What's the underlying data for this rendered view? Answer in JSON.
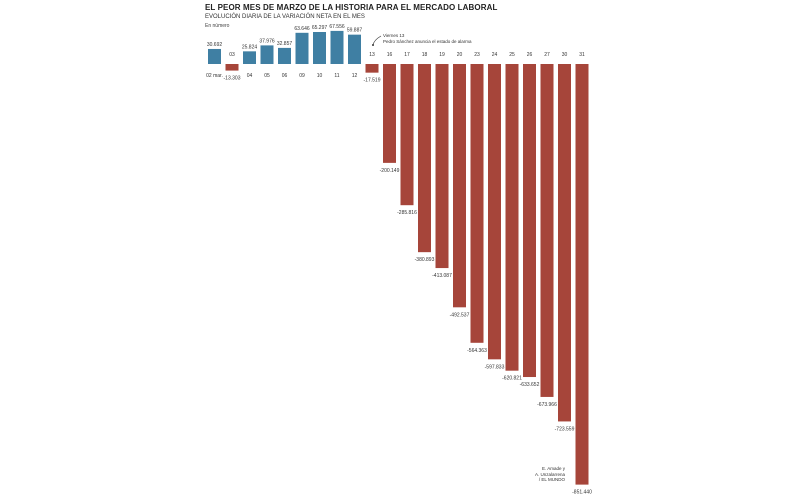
{
  "chart_data": {
    "type": "bar",
    "title": "EL PEOR MES DE MARZO DE LA HISTORIA PARA EL MERCADO LABORAL",
    "subtitle": "EVOLUCIÓN DIARIA DE LA VARIACIÓN NETA EN EL MES",
    "unit_note": "En número",
    "categories": [
      "02 mar.",
      "03",
      "04",
      "05",
      "06",
      "09",
      "10",
      "11",
      "12",
      "13",
      "16",
      "17",
      "18",
      "19",
      "20",
      "23",
      "24",
      "25",
      "26",
      "27",
      "30",
      "31"
    ],
    "values": [
      30692,
      -13303,
      25824,
      37976,
      32857,
      63646,
      65297,
      67556,
      59887,
      -17519,
      -200149,
      -285816,
      -380893,
      -413087,
      -492537,
      -564363,
      -597833,
      -620821,
      -633652,
      -673966,
      -723559,
      -851440
    ],
    "value_labels": [
      "30.692",
      "-13.303",
      "25.824",
      "37.976",
      "32.857",
      "63.646",
      "65.297",
      "67.556",
      "59.887",
      "-17.519",
      "-200.149",
      "-285.816",
      "-380.893",
      "-413.087",
      "-492.537",
      "-564.363",
      "-597.833",
      "-620.821",
      "-633.652",
      "-673.966",
      "-723.559",
      "-851.440"
    ],
    "colors": {
      "positive": "#3f7fa3",
      "negative": "#a6453a"
    },
    "annotation": {
      "category": "13",
      "lines": [
        "Viernes 13",
        "Pedro Sánchez anuncia el estado de alarma"
      ]
    },
    "grid": false,
    "credit_lines": [
      "E. Amade y",
      "A. Unzalarrena",
      "/ EL MUNDO"
    ]
  }
}
